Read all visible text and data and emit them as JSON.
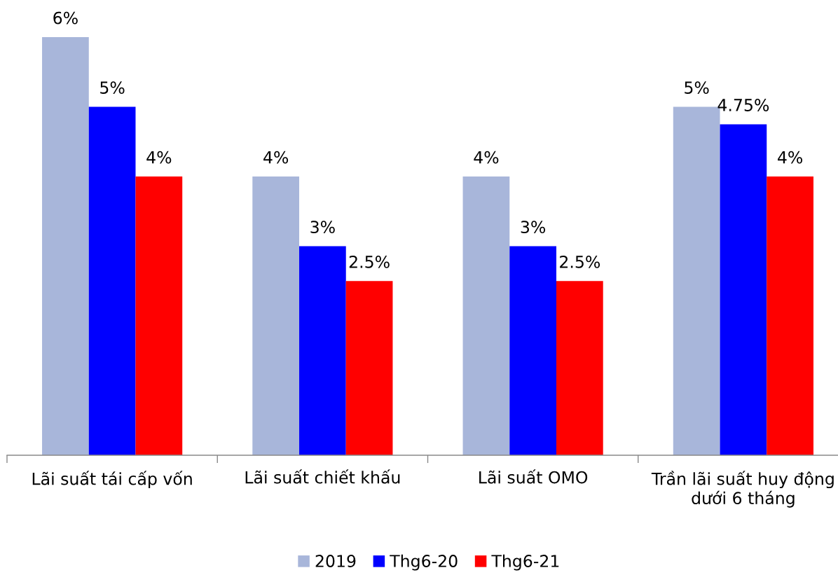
{
  "chart_data": {
    "type": "bar",
    "categories": [
      "Lãi suất tái cấp vốn",
      "Lãi suất chiết khấu",
      "Lãi suất OMO",
      "Trần lãi suất huy động\ndưới 6 tháng"
    ],
    "series": [
      {
        "name": "2019",
        "color": "#a8b6da",
        "values": [
          6,
          4,
          4,
          5
        ],
        "value_labels": [
          "6%",
          "4%",
          "4%",
          "5%"
        ]
      },
      {
        "name": "Thg6-20",
        "color": "#0000ff",
        "values": [
          5,
          3,
          3,
          4.75
        ],
        "value_labels": [
          "5%",
          "3%",
          "3%",
          "4.75%"
        ]
      },
      {
        "name": "Thg6-21",
        "color": "#ff0000",
        "values": [
          4,
          2.5,
          2.5,
          4
        ],
        "value_labels": [
          "4%",
          "2.5%",
          "2.5%",
          "4%"
        ]
      }
    ],
    "ylim": [
      0,
      6
    ],
    "tick_labels": "x",
    "legend": "bottom"
  }
}
